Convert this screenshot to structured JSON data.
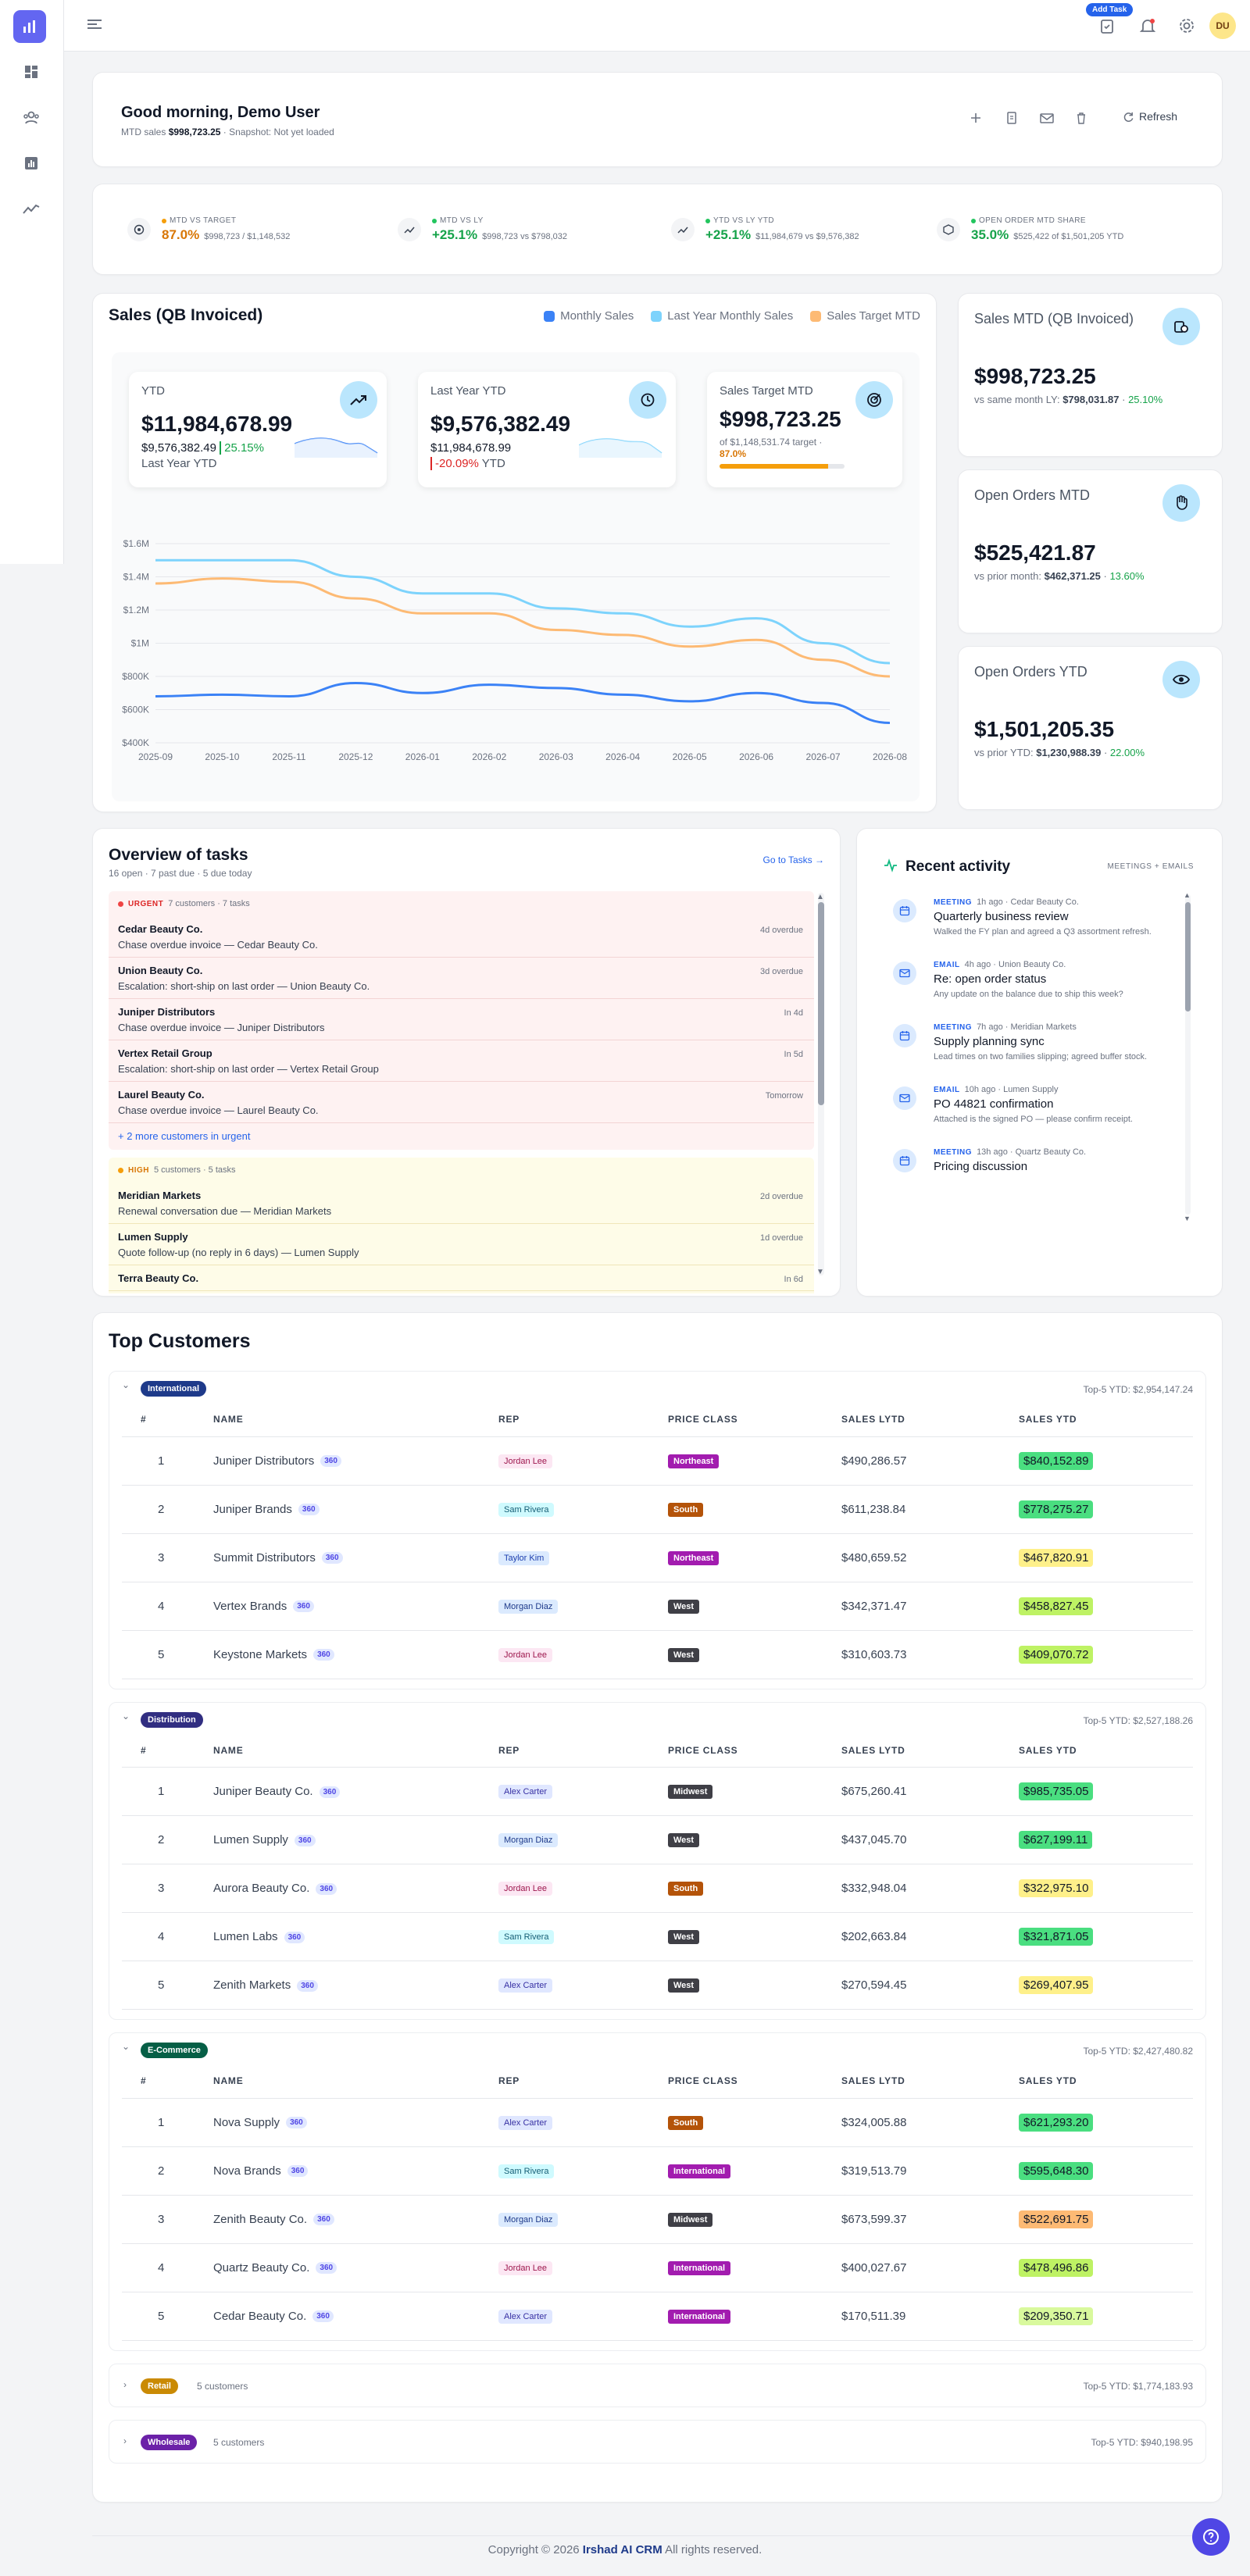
{
  "topbar": {
    "add_task_label": "Add Task",
    "avatar_initials": "DU"
  },
  "greeting": {
    "title": "Good morning, Demo User",
    "mtd_prefix": "MTD sales",
    "mtd_value": "$998,723.25",
    "snapshot": "· Snapshot: Not yet loaded",
    "refresh_label": "Refresh"
  },
  "kpis": [
    {
      "label": "MTD VS TARGET",
      "dot": "#f59e0b",
      "value": "87.0%",
      "value_color": "#d97706",
      "detail": "$998,723 / $1,148,532",
      "icon": "target-icon"
    },
    {
      "label": "MTD VS LY",
      "dot": "#22c55e",
      "value": "+25.1%",
      "value_color": "#16a34a",
      "detail": "$998,723 vs $798,032",
      "icon": "trend-up-icon"
    },
    {
      "label": "YTD VS LY YTD",
      "dot": "#22c55e",
      "value": "+25.1%",
      "value_color": "#16a34a",
      "detail": "$11,984,679 vs $9,576,382",
      "icon": "trend-up-icon"
    },
    {
      "label": "OPEN ORDER MTD SHARE",
      "dot": "#22c55e",
      "value": "35.0%",
      "value_color": "#16a34a",
      "detail": "$525,422 of $1,501,205 YTD",
      "icon": "box-icon"
    }
  ],
  "sales": {
    "title": "Sales (QB Invoiced)",
    "legend": [
      {
        "label": "Monthly Sales",
        "color": "#3b82f6"
      },
      {
        "label": "Last Year Monthly Sales",
        "color": "#7dd3fc"
      },
      {
        "label": "Sales Target MTD",
        "color": "#fdba74"
      }
    ],
    "cards": {
      "ytd": {
        "title": "YTD",
        "value": "$11,984,678.99",
        "sub_value": "$9,576,382.49",
        "pct": "25.15%",
        "sub_label": "Last Year YTD"
      },
      "ly": {
        "title": "Last Year YTD",
        "value": "$9,576,382.49",
        "sub_value": "$11,984,678.99",
        "pct": "-20.09%",
        "pct_suffix": "YTD"
      },
      "target": {
        "title": "Sales Target MTD",
        "value": "$998,723.25",
        "sub": "of $1,148,531.74 target ·",
        "pct": "87.0%",
        "progress": 0.87
      }
    }
  },
  "chart_data": {
    "type": "line",
    "categories": [
      "2025-09",
      "2025-10",
      "2025-11",
      "2025-12",
      "2026-01",
      "2026-02",
      "2026-03",
      "2026-04",
      "2026-05",
      "2026-06",
      "2026-07",
      "2026-08"
    ],
    "y_ticks": [
      "$400K",
      "$600K",
      "$800K",
      "$1M",
      "$1.2M",
      "$1.4M",
      "$1.6M"
    ],
    "ylim": [
      400000,
      1600000
    ],
    "grid": true,
    "series": [
      {
        "name": "Monthly Sales",
        "color": "#3b82f6",
        "values": [
          680000,
          690000,
          680000,
          760000,
          700000,
          750000,
          730000,
          690000,
          650000,
          700000,
          640000,
          520000
        ]
      },
      {
        "name": "Last Year Monthly Sales",
        "color": "#7dd3fc",
        "values": [
          1500000,
          1500000,
          1500000,
          1400000,
          1300000,
          1300000,
          1210000,
          1180000,
          1100000,
          1150000,
          1000000,
          880000
        ]
      },
      {
        "name": "Sales Target MTD",
        "color": "#fdba74",
        "values": [
          1360000,
          1390000,
          1370000,
          1270000,
          1180000,
          1180000,
          1080000,
          1050000,
          980000,
          1020000,
          900000,
          800000
        ]
      }
    ]
  },
  "side_cards": [
    {
      "title": "Sales MTD (QB Invoiced)",
      "value": "$998,723.25",
      "sub_prefix": "vs same month LY:",
      "sub_value": "$798,031.87",
      "pct": "25.10%",
      "icon": "coins-icon"
    },
    {
      "title": "Open Orders MTD",
      "value": "$525,421.87",
      "sub_prefix": "vs prior month:",
      "sub_value": "$462,371.25",
      "pct": "13.60%",
      "icon": "hand-icon"
    },
    {
      "title": "Open Orders YTD",
      "value": "$1,501,205.35",
      "sub_prefix": "vs prior YTD:",
      "sub_value": "$1,230,988.39",
      "pct": "22.00%",
      "icon": "eye-icon"
    }
  ],
  "tasks": {
    "title": "Overview of tasks",
    "subtitle": "16 open · 7 past due · 5 due today",
    "go_link": "Go to Tasks →",
    "urgent_label": "URGENT",
    "urgent_count": "7 customers · 7 tasks",
    "urgent": [
      {
        "name": "Cedar Beauty Co.",
        "desc": "Chase overdue invoice — Cedar Beauty Co.",
        "due": "4d overdue"
      },
      {
        "name": "Union Beauty Co.",
        "desc": "Escalation: short-ship on last order — Union Beauty Co.",
        "due": "3d overdue"
      },
      {
        "name": "Juniper Distributors",
        "desc": "Chase overdue invoice — Juniper Distributors",
        "due": "In 4d"
      },
      {
        "name": "Vertex Retail Group",
        "desc": "Escalation: short-ship on last order — Vertex Retail Group",
        "due": "In 5d"
      },
      {
        "name": "Laurel Beauty Co.",
        "desc": "Chase overdue invoice — Laurel Beauty Co.",
        "due": "Tomorrow"
      }
    ],
    "more_urgent": "+ 2 more customers in urgent",
    "high_label": "HIGH",
    "high_count": "5 customers · 5 tasks",
    "high": [
      {
        "name": "Meridian Markets",
        "desc": "Renewal conversation due — Meridian Markets",
        "due": "2d overdue"
      },
      {
        "name": "Lumen Supply",
        "desc": "Quote follow-up (no reply in 6 days) — Lumen Supply",
        "due": "1d overdue"
      },
      {
        "name": "Terra Beauty Co.",
        "desc": "",
        "due": "In 6d"
      }
    ]
  },
  "activity": {
    "title": "Recent activity",
    "tag": "MEETINGS + EMAILS",
    "items": [
      {
        "type": "MEETING",
        "meta": "1h ago · Cedar Beauty Co.",
        "title": "Quarterly business review",
        "desc": "Walked the FY plan and agreed a Q3 assortment refresh.",
        "icon": "calendar-icon"
      },
      {
        "type": "EMAIL",
        "meta": "4h ago · Union Beauty Co.",
        "title": "Re: open order status",
        "desc": "Any update on the balance due to ship this week?",
        "icon": "mail-icon"
      },
      {
        "type": "MEETING",
        "meta": "7h ago · Meridian Markets",
        "title": "Supply planning sync",
        "desc": "Lead times on two families slipping; agreed buffer stock.",
        "icon": "calendar-icon"
      },
      {
        "type": "EMAIL",
        "meta": "10h ago · Lumen Supply",
        "title": "PO 44821 confirmation",
        "desc": "Attached is the signed PO — please confirm receipt.",
        "icon": "mail-icon"
      },
      {
        "type": "MEETING",
        "meta": "13h ago · Quartz Beauty Co.",
        "title": "Pricing discussion",
        "desc": "",
        "icon": "calendar-icon"
      }
    ]
  },
  "top_customers": {
    "title": "Top Customers",
    "headers": [
      "#",
      "NAME",
      "REP",
      "PRICE CLASS",
      "SALES LYTD",
      "SALES YTD"
    ],
    "badge_360": "360",
    "groups": [
      {
        "name": "International",
        "color": "#1e3a8a",
        "total": "Top-5 YTD: $2,954,147.24",
        "rows": [
          {
            "n": "1",
            "name": "Juniper Distributors",
            "rep": "Jordan Lee",
            "pc": "Northeast",
            "lytd": "$490,286.57",
            "ytd": "$840,152.89"
          },
          {
            "n": "2",
            "name": "Juniper Brands",
            "rep": "Sam Rivera",
            "pc": "South",
            "lytd": "$611,238.84",
            "ytd": "$778,275.27"
          },
          {
            "n": "3",
            "name": "Summit Distributors",
            "rep": "Taylor Kim",
            "pc": "Northeast",
            "lytd": "$480,659.52",
            "ytd": "$467,820.91"
          },
          {
            "n": "4",
            "name": "Vertex Brands",
            "rep": "Morgan Diaz",
            "pc": "West",
            "lytd": "$342,371.47",
            "ytd": "$458,827.45"
          },
          {
            "n": "5",
            "name": "Keystone Markets",
            "rep": "Jordan Lee",
            "pc": "West",
            "lytd": "$310,603.73",
            "ytd": "$409,070.72"
          }
        ]
      },
      {
        "name": "Distribution",
        "color": "#312e81",
        "total": "Top-5 YTD: $2,527,188.26",
        "rows": [
          {
            "n": "1",
            "name": "Juniper Beauty Co.",
            "rep": "Alex Carter",
            "pc": "Midwest",
            "lytd": "$675,260.41",
            "ytd": "$985,735.05"
          },
          {
            "n": "2",
            "name": "Lumen Supply",
            "rep": "Morgan Diaz",
            "pc": "West",
            "lytd": "$437,045.70",
            "ytd": "$627,199.11"
          },
          {
            "n": "3",
            "name": "Aurora Beauty Co.",
            "rep": "Jordan Lee",
            "pc": "South",
            "lytd": "$332,948.04",
            "ytd": "$322,975.10"
          },
          {
            "n": "4",
            "name": "Lumen Labs",
            "rep": "Sam Rivera",
            "pc": "West",
            "lytd": "$202,663.84",
            "ytd": "$321,871.05"
          },
          {
            "n": "5",
            "name": "Zenith Markets",
            "rep": "Alex Carter",
            "pc": "West",
            "lytd": "$270,594.45",
            "ytd": "$269,407.95"
          }
        ]
      },
      {
        "name": "E-Commerce",
        "color": "#065f46",
        "total": "Top-5 YTD: $2,427,480.82",
        "rows": [
          {
            "n": "1",
            "name": "Nova Supply",
            "rep": "Alex Carter",
            "pc": "South",
            "lytd": "$324,005.88",
            "ytd": "$621,293.20"
          },
          {
            "n": "2",
            "name": "Nova Brands",
            "rep": "Sam Rivera",
            "pc": "International",
            "lytd": "$319,513.79",
            "ytd": "$595,648.30"
          },
          {
            "n": "3",
            "name": "Zenith Beauty Co.",
            "rep": "Morgan Diaz",
            "pc": "Midwest",
            "lytd": "$673,599.37",
            "ytd": "$522,691.75"
          },
          {
            "n": "4",
            "name": "Quartz Beauty Co.",
            "rep": "Jordan Lee",
            "pc": "International",
            "lytd": "$400,027.67",
            "ytd": "$478,496.86"
          },
          {
            "n": "5",
            "name": "Cedar Beauty Co.",
            "rep": "Alex Carter",
            "pc": "International",
            "lytd": "$170,511.39",
            "ytd": "$209,350.71"
          }
        ]
      }
    ],
    "collapsed": [
      {
        "name": "Retail",
        "color": "#ca8a04",
        "count": "5 customers",
        "total": "Top-5 YTD: $1,774,183.93"
      },
      {
        "name": "Wholesale",
        "color": "#6b21a8",
        "count": "5 customers",
        "total": "Top-5 YTD: $940,198.95"
      }
    ]
  },
  "colors": {
    "pc": {
      "Northeast": "#a21caf",
      "South": "#b45309",
      "West": "#3f3f46",
      "Midwest": "#3f3f46",
      "International": "#a21caf"
    },
    "rep": {
      "Jordan Lee": [
        "#fce7f3",
        "#9d174d"
      ],
      "Sam Rivera": [
        "#cffafe",
        "#155e75"
      ],
      "Taylor Kim": [
        "#dbeafe",
        "#1e40af"
      ],
      "Morgan Diaz": [
        "#dbeafe",
        "#1e3a8a"
      ],
      "Alex Carter": [
        "#e0e7ff",
        "#3730a3"
      ]
    }
  },
  "footer": {
    "prefix": "Copyright © 2026",
    "brand": "Irshad AI CRM",
    "suffix": "All rights reserved."
  }
}
